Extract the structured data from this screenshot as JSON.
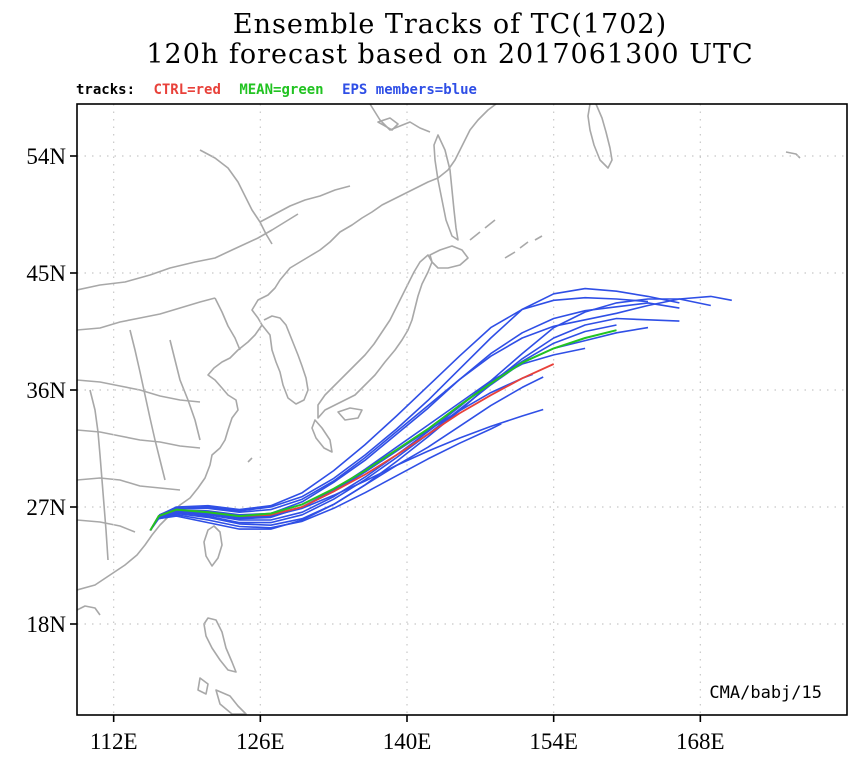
{
  "title": {
    "line1": "Ensemble Tracks of TC(1702)",
    "line2": "120h forecast based on 2017061300 UTC"
  },
  "legend": {
    "prefix": "tracks:",
    "ctrl": {
      "label": "CTRL=red",
      "color": "#e8413a"
    },
    "mean": {
      "label": "MEAN=green",
      "color": "#22c322"
    },
    "eps": {
      "label": "EPS members=blue",
      "color": "#2f4fe6"
    }
  },
  "axes": {
    "lon_ticks": [
      "112E",
      "126E",
      "140E",
      "154E",
      "168E"
    ],
    "lat_ticks": [
      "54N",
      "45N",
      "36N",
      "27N",
      "18N"
    ],
    "lon_range": [
      108.5,
      182
    ],
    "lat_range": [
      11,
      58
    ],
    "grid": "dotted"
  },
  "credit": "CMA/babj/15",
  "map_colors": {
    "coast": "#a8a8a8",
    "grid": "#c8c8c8"
  },
  "tracks": {
    "ctrl": [
      [
        115.5,
        25.2
      ],
      [
        116.3,
        26.3
      ],
      [
        118,
        26.8
      ],
      [
        121,
        26.6
      ],
      [
        124,
        26.3
      ],
      [
        127,
        26.4
      ],
      [
        130,
        27
      ],
      [
        133,
        28.2
      ],
      [
        136,
        29.5
      ],
      [
        139,
        31
      ],
      [
        142,
        32.6
      ],
      [
        145,
        34.2
      ],
      [
        148,
        35.6
      ],
      [
        151,
        36.9
      ],
      [
        154,
        38
      ]
    ],
    "mean": [
      [
        115.5,
        25.2
      ],
      [
        116.3,
        26.3
      ],
      [
        118,
        26.8
      ],
      [
        121,
        26.6
      ],
      [
        124,
        26.3
      ],
      [
        127,
        26.5
      ],
      [
        130,
        27.2
      ],
      [
        133,
        28.4
      ],
      [
        136,
        29.8
      ],
      [
        139,
        31.4
      ],
      [
        142,
        33
      ],
      [
        145,
        34.8
      ],
      [
        148,
        36.5
      ],
      [
        151,
        38.1
      ],
      [
        154,
        39.2
      ],
      [
        157,
        40
      ],
      [
        160,
        40.6
      ]
    ],
    "eps": [
      [
        [
          115.5,
          25.2
        ],
        [
          116.4,
          26.4
        ],
        [
          118,
          26.9
        ],
        [
          121,
          27
        ],
        [
          124,
          26.7
        ],
        [
          127,
          27
        ],
        [
          130,
          27.8
        ],
        [
          133,
          29.2
        ],
        [
          136,
          31
        ],
        [
          139,
          33
        ],
        [
          142,
          35.2
        ],
        [
          145,
          37.6
        ],
        [
          148,
          40
        ],
        [
          151,
          42.2
        ],
        [
          154,
          43.4
        ],
        [
          157,
          43.8
        ],
        [
          160,
          43.6
        ],
        [
          163,
          43.2
        ],
        [
          166,
          42.7
        ]
      ],
      [
        [
          115.5,
          25.2
        ],
        [
          116.3,
          26.3
        ],
        [
          118,
          26.6
        ],
        [
          121,
          26.4
        ],
        [
          124,
          26
        ],
        [
          127,
          26
        ],
        [
          130,
          26.6
        ],
        [
          133,
          27.8
        ],
        [
          136,
          29.3
        ],
        [
          139,
          31
        ],
        [
          142,
          32.8
        ],
        [
          145,
          34.7
        ],
        [
          148,
          36.7
        ],
        [
          151,
          38.8
        ],
        [
          154,
          40.8
        ],
        [
          157,
          42
        ],
        [
          160,
          42.7
        ],
        [
          163,
          43
        ],
        [
          166,
          43
        ],
        [
          169,
          42.5
        ]
      ],
      [
        [
          115.5,
          25.2
        ],
        [
          116.4,
          26.3
        ],
        [
          118,
          26.8
        ],
        [
          121,
          26.7
        ],
        [
          124,
          26.4
        ],
        [
          127,
          26.5
        ],
        [
          130,
          27.4
        ],
        [
          133,
          28.9
        ],
        [
          136,
          30.6
        ],
        [
          139,
          32.6
        ],
        [
          142,
          34.6
        ],
        [
          145,
          36.8
        ],
        [
          148,
          38.8
        ],
        [
          151,
          40.4
        ],
        [
          154,
          41.5
        ],
        [
          157,
          42.1
        ],
        [
          160,
          42.4
        ],
        [
          163,
          42.7
        ],
        [
          166,
          42.3
        ]
      ],
      [
        [
          115.5,
          25.2
        ],
        [
          116.3,
          26.2
        ],
        [
          118,
          26.5
        ],
        [
          121,
          26.2
        ],
        [
          124,
          25.7
        ],
        [
          127,
          25.6
        ],
        [
          130,
          26.1
        ],
        [
          133,
          27.2
        ],
        [
          136,
          28.7
        ],
        [
          139,
          30.5
        ],
        [
          142,
          32.4
        ],
        [
          145,
          34.4
        ],
        [
          148,
          36.5
        ],
        [
          151,
          38.4
        ],
        [
          154,
          40
        ],
        [
          157,
          41
        ],
        [
          160,
          41.5
        ],
        [
          163,
          41.4
        ],
        [
          166,
          41.3
        ]
      ],
      [
        [
          115.5,
          25.2
        ],
        [
          116.4,
          26.4
        ],
        [
          118,
          26.9
        ],
        [
          121,
          26.9
        ],
        [
          124,
          26.6
        ],
        [
          127,
          26.8
        ],
        [
          130,
          27.6
        ],
        [
          133,
          29
        ],
        [
          136,
          30.8
        ],
        [
          139,
          32.8
        ],
        [
          142,
          34.8
        ],
        [
          145,
          36.8
        ],
        [
          148,
          38.6
        ],
        [
          151,
          40
        ],
        [
          154,
          40.9
        ],
        [
          157,
          41.4
        ],
        [
          160,
          41.9
        ],
        [
          163,
          42.5
        ],
        [
          166,
          43
        ],
        [
          169,
          43.2
        ],
        [
          171,
          42.9
        ]
      ],
      [
        [
          115.5,
          25.2
        ],
        [
          116.3,
          26.2
        ],
        [
          118,
          26.5
        ],
        [
          121,
          26.3
        ],
        [
          124,
          25.8
        ],
        [
          127,
          25.8
        ],
        [
          130,
          26.4
        ],
        [
          133,
          27.6
        ],
        [
          136,
          29.1
        ],
        [
          139,
          30.8
        ],
        [
          142,
          32.6
        ],
        [
          145,
          34.5
        ],
        [
          148,
          36.4
        ],
        [
          151,
          38.1
        ],
        [
          154,
          39.2
        ],
        [
          157,
          39.8
        ],
        [
          160,
          40.4
        ],
        [
          163,
          40.8
        ]
      ],
      [
        [
          115.5,
          25.2
        ],
        [
          116.3,
          26.3
        ],
        [
          118,
          26.7
        ],
        [
          121,
          26.5
        ],
        [
          124,
          26.1
        ],
        [
          127,
          26.2
        ],
        [
          130,
          27
        ],
        [
          133,
          28.3
        ],
        [
          136,
          29.9
        ],
        [
          139,
          31.6
        ],
        [
          142,
          33.3
        ],
        [
          145,
          35
        ],
        [
          148,
          36.7
        ],
        [
          151,
          38
        ],
        [
          154,
          38.7
        ],
        [
          157,
          39.2
        ]
      ],
      [
        [
          115.5,
          25.2
        ],
        [
          116.3,
          26.3
        ],
        [
          118,
          26.7
        ],
        [
          121,
          26.5
        ],
        [
          124,
          26.3
        ],
        [
          127,
          26.4
        ],
        [
          130,
          27
        ],
        [
          133,
          28.2
        ],
        [
          136,
          29.7
        ],
        [
          139,
          31.3
        ],
        [
          142,
          33
        ],
        [
          145,
          34.8
        ],
        [
          148,
          36.6
        ],
        [
          151,
          38.2
        ],
        [
          154,
          39.6
        ],
        [
          157,
          40.5
        ],
        [
          160,
          41
        ]
      ],
      [
        [
          115.5,
          25.2
        ],
        [
          116.2,
          26.1
        ],
        [
          118,
          26.3
        ],
        [
          121,
          25.8
        ],
        [
          124,
          25.3
        ],
        [
          127,
          25.3
        ],
        [
          130,
          26
        ],
        [
          133,
          27.2
        ],
        [
          136,
          28.7
        ],
        [
          139,
          30.2
        ],
        [
          142,
          31.6
        ],
        [
          145,
          33.2
        ],
        [
          148,
          34.8
        ],
        [
          151,
          36.2
        ],
        [
          153,
          37
        ]
      ],
      [
        [
          115.5,
          25.2
        ],
        [
          116.3,
          26.2
        ],
        [
          118,
          26.6
        ],
        [
          121,
          26.5
        ],
        [
          124,
          26.2
        ],
        [
          127,
          26.3
        ],
        [
          130,
          26.9
        ],
        [
          133,
          27.9
        ],
        [
          136,
          29
        ],
        [
          139,
          30.2
        ],
        [
          142,
          31.3
        ],
        [
          145,
          32.3
        ],
        [
          148,
          33.2
        ],
        [
          151,
          34
        ],
        [
          153,
          34.5
        ]
      ],
      [
        [
          115.5,
          25.2
        ],
        [
          116.3,
          26.1
        ],
        [
          118,
          26.4
        ],
        [
          121,
          26
        ],
        [
          124,
          25.5
        ],
        [
          127,
          25.4
        ],
        [
          130,
          25.9
        ],
        [
          133,
          26.9
        ],
        [
          136,
          28.1
        ],
        [
          139,
          29.4
        ],
        [
          142,
          30.7
        ],
        [
          145,
          31.9
        ],
        [
          148,
          33
        ],
        [
          149,
          33.4
        ]
      ],
      [
        [
          115.5,
          25.2
        ],
        [
          116.3,
          26.3
        ],
        [
          118,
          26.8
        ],
        [
          121,
          26.6
        ],
        [
          124,
          26.2
        ],
        [
          127,
          26.3
        ],
        [
          130,
          27
        ],
        [
          133,
          28.2
        ],
        [
          136,
          29.7
        ],
        [
          139,
          31.3
        ],
        [
          142,
          32.9
        ],
        [
          145,
          34.4
        ],
        [
          148,
          35.8
        ],
        [
          151,
          36.9
        ],
        [
          152,
          37.2
        ]
      ],
      [
        [
          115.5,
          25.2
        ],
        [
          116.4,
          26.4
        ],
        [
          118,
          27
        ],
        [
          121,
          27.1
        ],
        [
          124,
          26.8
        ],
        [
          127,
          27.1
        ],
        [
          130,
          28.1
        ],
        [
          133,
          29.8
        ],
        [
          136,
          31.8
        ],
        [
          139,
          34
        ],
        [
          142,
          36.3
        ],
        [
          145,
          38.6
        ],
        [
          148,
          40.8
        ],
        [
          151,
          42.2
        ],
        [
          154,
          42.9
        ],
        [
          157,
          43.1
        ],
        [
          160,
          43
        ],
        [
          163,
          42.8
        ]
      ]
    ]
  }
}
